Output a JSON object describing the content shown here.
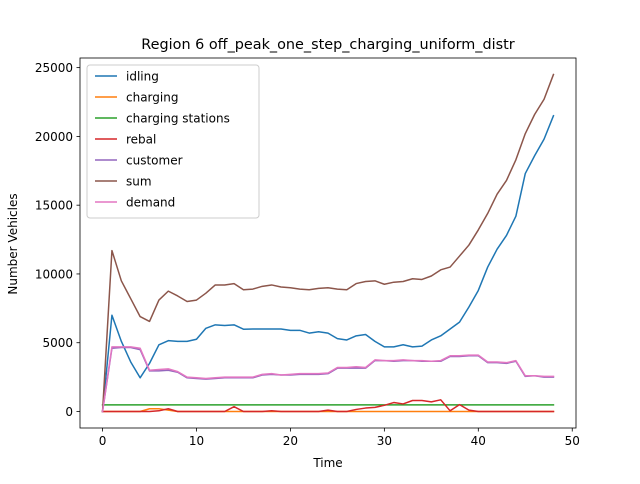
{
  "chart_data": {
    "type": "line",
    "title": "Region 6 off_peak_one_step_charging_uniform_distr",
    "xlabel": "Time",
    "ylabel": "Number Vehicles",
    "xlim": [
      -2.4,
      50.4
    ],
    "ylim": [
      -1200,
      25700
    ],
    "xticks": [
      0,
      10,
      20,
      30,
      40,
      50
    ],
    "yticks": [
      0,
      5000,
      10000,
      15000,
      20000,
      25000
    ],
    "grid": false,
    "legend_position": "top-left",
    "x": [
      0,
      1,
      2,
      3,
      4,
      5,
      6,
      7,
      8,
      9,
      10,
      11,
      12,
      13,
      14,
      15,
      16,
      17,
      18,
      19,
      20,
      21,
      22,
      23,
      24,
      25,
      26,
      27,
      28,
      29,
      30,
      31,
      32,
      33,
      34,
      35,
      36,
      37,
      38,
      39,
      40,
      41,
      42,
      43,
      44,
      45,
      46,
      47,
      48
    ],
    "series": [
      {
        "name": "idling",
        "color": "#1f77b4",
        "values": [
          0,
          7000,
          5100,
          3600,
          2450,
          3500,
          4850,
          5150,
          5100,
          5100,
          5250,
          6050,
          6300,
          6250,
          6300,
          5980,
          6000,
          6000,
          6000,
          6000,
          5900,
          5900,
          5700,
          5800,
          5700,
          5300,
          5200,
          5500,
          5600,
          5100,
          4700,
          4700,
          4850,
          4700,
          4750,
          5200,
          5500,
          6000,
          6500,
          7600,
          8800,
          10500,
          11800,
          12800,
          14200,
          17300,
          18600,
          19800,
          21500
        ]
      },
      {
        "name": "charging",
        "color": "#ff7f0e",
        "values": [
          0,
          0,
          0,
          0,
          0,
          200,
          200,
          100,
          0,
          0,
          0,
          0,
          0,
          0,
          0,
          0,
          0,
          0,
          0,
          0,
          0,
          0,
          0,
          0,
          0,
          0,
          0,
          0,
          0,
          0,
          0,
          0,
          0,
          0,
          0,
          0,
          0,
          0,
          0,
          0,
          0,
          0,
          0,
          0,
          0,
          0,
          0,
          0,
          0
        ]
      },
      {
        "name": "charging stations",
        "color": "#2ca02c",
        "values": [
          480,
          480,
          480,
          480,
          480,
          480,
          480,
          480,
          480,
          480,
          480,
          480,
          480,
          480,
          480,
          480,
          480,
          480,
          480,
          480,
          480,
          480,
          480,
          480,
          480,
          480,
          480,
          480,
          480,
          480,
          480,
          480,
          480,
          480,
          480,
          480,
          480,
          480,
          480,
          480,
          480,
          480,
          480,
          480,
          480,
          480,
          480,
          480,
          480
        ]
      },
      {
        "name": "rebal",
        "color": "#d62728",
        "values": [
          0,
          0,
          0,
          0,
          0,
          0,
          50,
          200,
          0,
          0,
          0,
          0,
          0,
          0,
          350,
          0,
          0,
          0,
          50,
          0,
          0,
          0,
          0,
          0,
          100,
          0,
          0,
          150,
          250,
          300,
          450,
          650,
          550,
          800,
          800,
          700,
          850,
          50,
          500,
          100,
          0,
          0,
          0,
          0,
          0,
          0,
          0,
          0,
          0
        ]
      },
      {
        "name": "customer",
        "color": "#9467bd",
        "values": [
          0,
          4600,
          4650,
          4650,
          4500,
          2950,
          2950,
          3000,
          2850,
          2450,
          2400,
          2350,
          2400,
          2450,
          2450,
          2450,
          2450,
          2650,
          2700,
          2650,
          2650,
          2700,
          2700,
          2700,
          2750,
          3150,
          3150,
          3150,
          3150,
          3700,
          3700,
          3650,
          3700,
          3700,
          3650,
          3650,
          3650,
          4000,
          4000,
          4050,
          4050,
          3550,
          3550,
          3500,
          3650,
          2550,
          2600,
          2500,
          2500
        ]
      },
      {
        "name": "sum",
        "color": "#8c564b",
        "values": [
          0,
          11700,
          9500,
          8200,
          6900,
          6550,
          8100,
          8750,
          8400,
          8000,
          8100,
          8600,
          9200,
          9200,
          9300,
          8850,
          8900,
          9100,
          9200,
          9050,
          9000,
          8900,
          8850,
          8950,
          9000,
          8900,
          8850,
          9300,
          9450,
          9500,
          9250,
          9400,
          9450,
          9650,
          9600,
          9850,
          10300,
          10500,
          11300,
          12100,
          13200,
          14400,
          15800,
          16800,
          18300,
          20200,
          21600,
          22700,
          24500
        ]
      },
      {
        "name": "demand",
        "color": "#e377c2",
        "values": [
          0,
          4700,
          4700,
          4700,
          4600,
          3000,
          3050,
          3100,
          2900,
          2500,
          2450,
          2400,
          2450,
          2500,
          2500,
          2500,
          2500,
          2700,
          2750,
          2650,
          2700,
          2750,
          2750,
          2750,
          2800,
          3200,
          3200,
          3250,
          3200,
          3750,
          3700,
          3700,
          3750,
          3700,
          3700,
          3650,
          3700,
          4050,
          4050,
          4100,
          4100,
          3600,
          3600,
          3550,
          3700,
          2600,
          2600,
          2550,
          2550
        ]
      }
    ]
  }
}
